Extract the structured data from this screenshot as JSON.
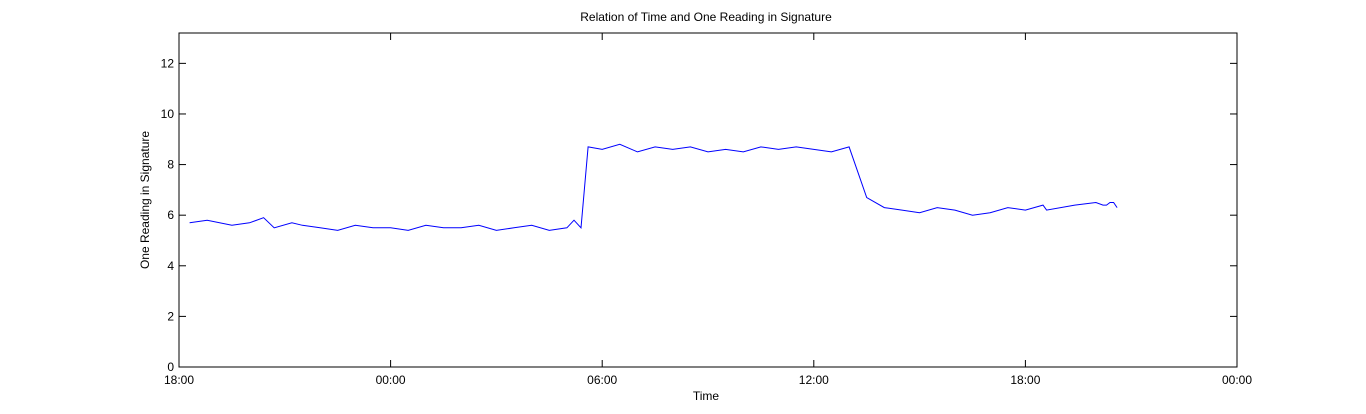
{
  "chart_data": {
    "type": "line",
    "title": "Relation of Time and One Reading in Signature",
    "xlabel": "Time",
    "ylabel": "One Reading in Signature",
    "x_tick_labels": [
      "18:00",
      "00:00",
      "06:00",
      "12:00",
      "18:00",
      "00:00"
    ],
    "x_tick_hours": [
      0,
      6,
      12,
      18,
      24,
      30
    ],
    "xlim_hours": [
      0,
      30
    ],
    "y_ticks": [
      0,
      2,
      4,
      6,
      8,
      10,
      12
    ],
    "ylim": [
      0,
      13.2
    ],
    "grid": false,
    "series_color": "#0000ff",
    "series": [
      {
        "x_hours": [
          0.3,
          0.8,
          1.5,
          2.0,
          2.4,
          2.7,
          3.2,
          3.5,
          4.0,
          4.5,
          5.0,
          5.5,
          6.0,
          6.5,
          7.0,
          7.5,
          8.0,
          8.5,
          9.0,
          9.5,
          10.0,
          10.5,
          11.0,
          11.2,
          11.4,
          11.6,
          12.0,
          12.5,
          13.0,
          13.5,
          14.0,
          14.5,
          15.0,
          15.5,
          16.0,
          16.5,
          17.0,
          17.5,
          18.0,
          18.5,
          19.0,
          19.5,
          20.0,
          20.5,
          21.0,
          21.5,
          22.0,
          22.5,
          23.0,
          23.5,
          24.0,
          24.5,
          24.6,
          25.4,
          26.0,
          26.2,
          26.3,
          26.4,
          26.5,
          26.6
        ],
        "y": [
          5.7,
          5.8,
          5.6,
          5.7,
          5.9,
          5.5,
          5.7,
          5.6,
          5.5,
          5.4,
          5.6,
          5.5,
          5.5,
          5.4,
          5.6,
          5.5,
          5.5,
          5.6,
          5.4,
          5.5,
          5.6,
          5.4,
          5.5,
          5.8,
          5.5,
          8.7,
          8.6,
          8.8,
          8.5,
          8.7,
          8.6,
          8.7,
          8.5,
          8.6,
          8.5,
          8.7,
          8.6,
          8.7,
          8.6,
          8.5,
          8.7,
          6.7,
          6.3,
          6.2,
          6.1,
          6.3,
          6.2,
          6.0,
          6.1,
          6.3,
          6.2,
          6.4,
          6.2,
          6.4,
          6.5,
          6.4,
          6.4,
          6.5,
          6.5,
          6.3
        ]
      }
    ]
  }
}
